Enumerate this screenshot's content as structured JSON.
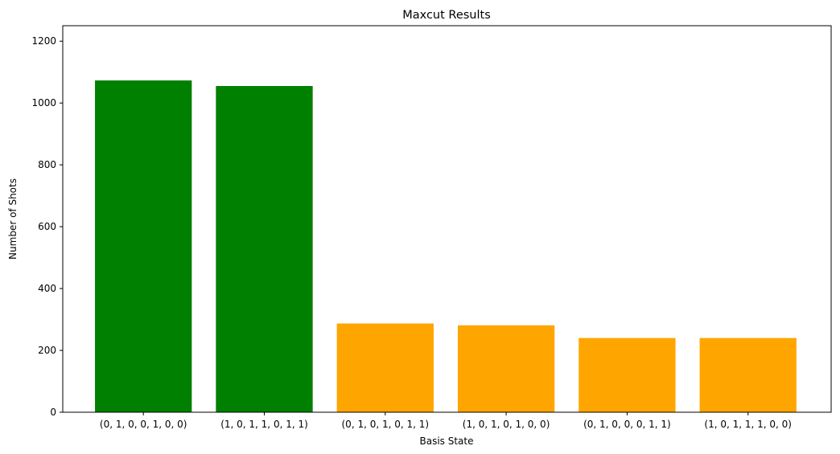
{
  "chart_data": {
    "type": "bar",
    "title": "Maxcut Results",
    "xlabel": "Basis State",
    "ylabel": "Number of Shots",
    "categories": [
      "(0, 1, 0, 0, 1, 0, 0)",
      "(1, 0, 1, 1, 0, 1, 1)",
      "(0, 1, 0, 1, 0, 1, 1)",
      "(1, 0, 1, 0, 1, 0, 0)",
      "(0, 1, 0, 0, 0, 1, 1)",
      "(1, 0, 1, 1, 1, 0, 0)"
    ],
    "values": [
      1073,
      1055,
      287,
      281,
      240,
      240
    ],
    "bar_colors": [
      "#008000",
      "#008000",
      "#ffa500",
      "#ffa500",
      "#ffa500",
      "#ffa500"
    ],
    "ylim": [
      0,
      1250
    ],
    "yticks": [
      0,
      200,
      400,
      600,
      800,
      1000,
      1200
    ],
    "grid": false,
    "legend": "none"
  }
}
